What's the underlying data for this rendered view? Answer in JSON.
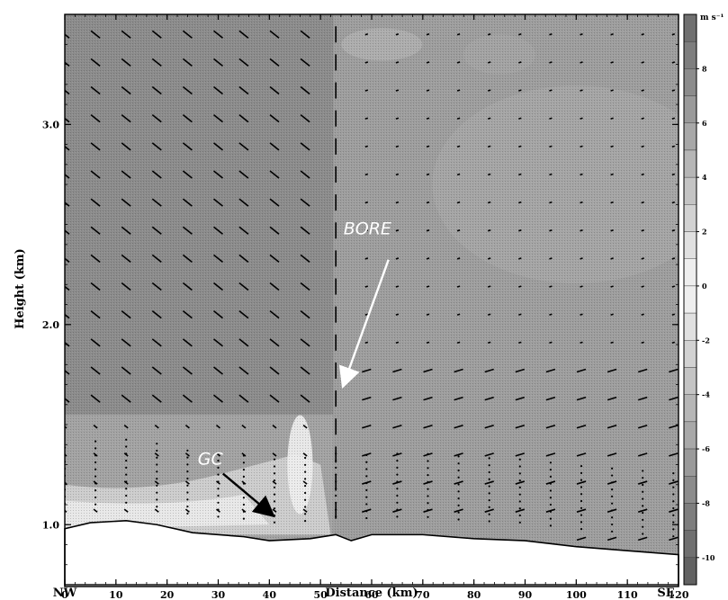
{
  "chart_data": {
    "type": "heatmap",
    "title": "",
    "xlabel": "Distance (km)",
    "ylabel": "Height (km)",
    "xlim": [
      0,
      120
    ],
    "ylim": [
      0.7,
      3.55
    ],
    "x_ticks": [
      0,
      10,
      20,
      30,
      40,
      50,
      60,
      70,
      80,
      90,
      100,
      110,
      120
    ],
    "y_ticks": [
      1.0,
      2.0,
      3.0
    ],
    "y_tick_labels": [
      "1.0",
      "2.0",
      "3.0"
    ],
    "direction_left": "NW",
    "direction_right": "SE",
    "colorbar": {
      "unit": "m s⁻¹",
      "ticks": [
        8,
        6,
        4,
        2,
        0,
        -2,
        -4,
        -6,
        -8,
        -10
      ],
      "range": [
        -11,
        10
      ]
    },
    "annotations": [
      {
        "text": "BORE",
        "x": 54.5,
        "y": 2.45,
        "arrow_to": [
          54.5,
          1.7
        ]
      },
      {
        "text": "GC",
        "x": 26,
        "y": 1.3,
        "arrow_to": [
          40.5,
          1.05
        ]
      }
    ],
    "terrain": [
      [
        0,
        0.98
      ],
      [
        5,
        1.01
      ],
      [
        12,
        1.02
      ],
      [
        18,
        1.0
      ],
      [
        25,
        0.96
      ],
      [
        35,
        0.94
      ],
      [
        40,
        0.92
      ],
      [
        48,
        0.93
      ],
      [
        53,
        0.95
      ],
      [
        56,
        0.92
      ],
      [
        60,
        0.95
      ],
      [
        70,
        0.95
      ],
      [
        80,
        0.93
      ],
      [
        90,
        0.92
      ],
      [
        100,
        0.89
      ],
      [
        110,
        0.87
      ],
      [
        120,
        0.85
      ]
    ],
    "wind_columns_x": [
      0,
      6,
      12,
      18,
      24,
      30,
      35,
      41,
      47,
      53,
      59,
      65,
      71,
      77,
      83,
      89,
      95,
      101,
      107,
      113,
      119
    ],
    "bore_x": 52.5
  }
}
